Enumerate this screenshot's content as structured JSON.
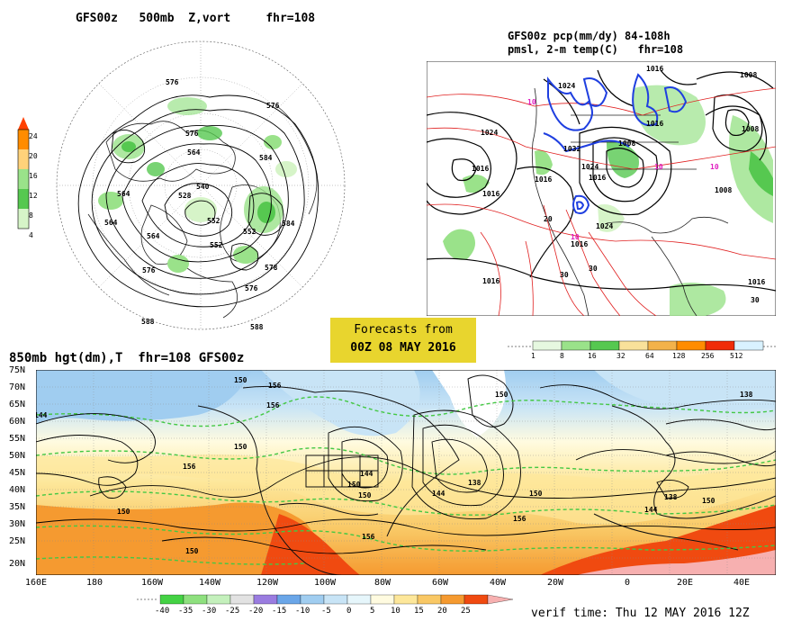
{
  "panels": {
    "z500": {
      "title": "GFS00z   500mb  Z,vort     fhr=108",
      "scale_ticks": [
        "24",
        "20",
        "16",
        "12",
        "8",
        "4"
      ],
      "scale_colors": [
        "#ff4000",
        "#ff8c00",
        "#ffd27a",
        "#9ae28a",
        "#56c850",
        "#d6f4c8"
      ],
      "contour_labels": [
        "576",
        "576",
        "564",
        "584",
        "552",
        "564",
        "576",
        "588",
        "588",
        "576",
        "576",
        "584",
        "564",
        "552",
        "552",
        "540",
        "528",
        "564",
        "578"
      ]
    },
    "pcp": {
      "title_line1": "GFS00z pcp(mm/dy) 84-108h",
      "title_line2": "pmsl, 2-m temp(C)   fhr=108",
      "isobar_labels": [
        "1024",
        "1016",
        "1016",
        "1016",
        "1008",
        "1008",
        "1008",
        "1016",
        "1032",
        "1024",
        "1024",
        "1016",
        "1016",
        "1016",
        "1016",
        "1016",
        "1008",
        "1024"
      ],
      "temp_labels": [
        "10",
        "10",
        "10",
        "10",
        "20",
        "30",
        "30",
        "30"
      ],
      "scale_ticks": [
        "1",
        "8",
        "16",
        "32",
        "64",
        "128",
        "256",
        "512"
      ],
      "scale_colors": [
        "#e6f8e0",
        "#9ae28a",
        "#56c850",
        "#f9e19a",
        "#f3b24a",
        "#ff8c00",
        "#f02c08",
        "#d9f2ff"
      ]
    },
    "forecast_box": {
      "line1": "Forecasts from",
      "line2": "00Z 08 MAY 2016"
    },
    "t850": {
      "title": "850mb hgt(dm),T  fhr=108 GFS00z",
      "lat_ticks": [
        "75N",
        "70N",
        "65N",
        "60N",
        "55N",
        "50N",
        "45N",
        "40N",
        "35N",
        "30N",
        "25N",
        "20N"
      ],
      "lon_ticks": [
        "160E",
        "180",
        "160W",
        "140W",
        "120W",
        "100W",
        "80W",
        "60W",
        "40W",
        "20W",
        "0",
        "20E",
        "40E"
      ],
      "contour_labels": [
        "156",
        "144",
        "150",
        "150",
        "156",
        "150",
        "150",
        "144",
        "150",
        "144",
        "138",
        "150",
        "156",
        "138",
        "150",
        "144",
        "138",
        "150",
        "156",
        "156",
        "150"
      ],
      "scale_ticks": [
        "-40",
        "-35",
        "-30",
        "-25",
        "-20",
        "-15",
        "-10",
        "-5",
        "0",
        "5",
        "10",
        "15",
        "20",
        "25"
      ],
      "scale_colors": [
        "#44d244",
        "#8ee07e",
        "#c4f0bc",
        "#e2e2e2",
        "#9a7ce0",
        "#6aa6e8",
        "#a0cdf0",
        "#c8e4f6",
        "#e6f6fb",
        "#fffbe0",
        "#fde79a",
        "#f9c865",
        "#f59a30",
        "#f04a10",
        "#f7b0b0"
      ],
      "verif_time": "verif time: Thu 12 MAY 2016 12Z"
    }
  }
}
